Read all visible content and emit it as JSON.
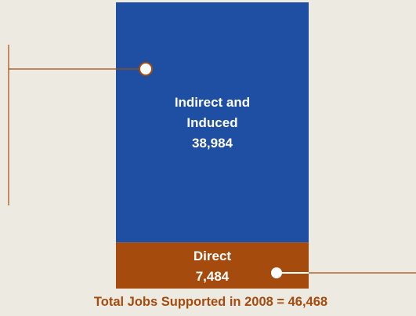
{
  "chart_data": {
    "type": "bar",
    "stacked": true,
    "categories": [
      "Total Jobs Supported in 2008"
    ],
    "series": [
      {
        "name": "Direct",
        "value_label": "7,484",
        "values": [
          7484
        ],
        "color": "#A64B0E"
      },
      {
        "name": "Indirect and Induced",
        "value_label": "38,984",
        "values": [
          38984
        ],
        "color": "#1F4FA3"
      }
    ],
    "total": 46468,
    "title": "Total Jobs Supported in 2008 = 46,468",
    "title_color": "#A64B0E",
    "callout_color": "#A64B0E",
    "xlabel": "",
    "ylabel": "",
    "grid": false,
    "legend": "none"
  }
}
